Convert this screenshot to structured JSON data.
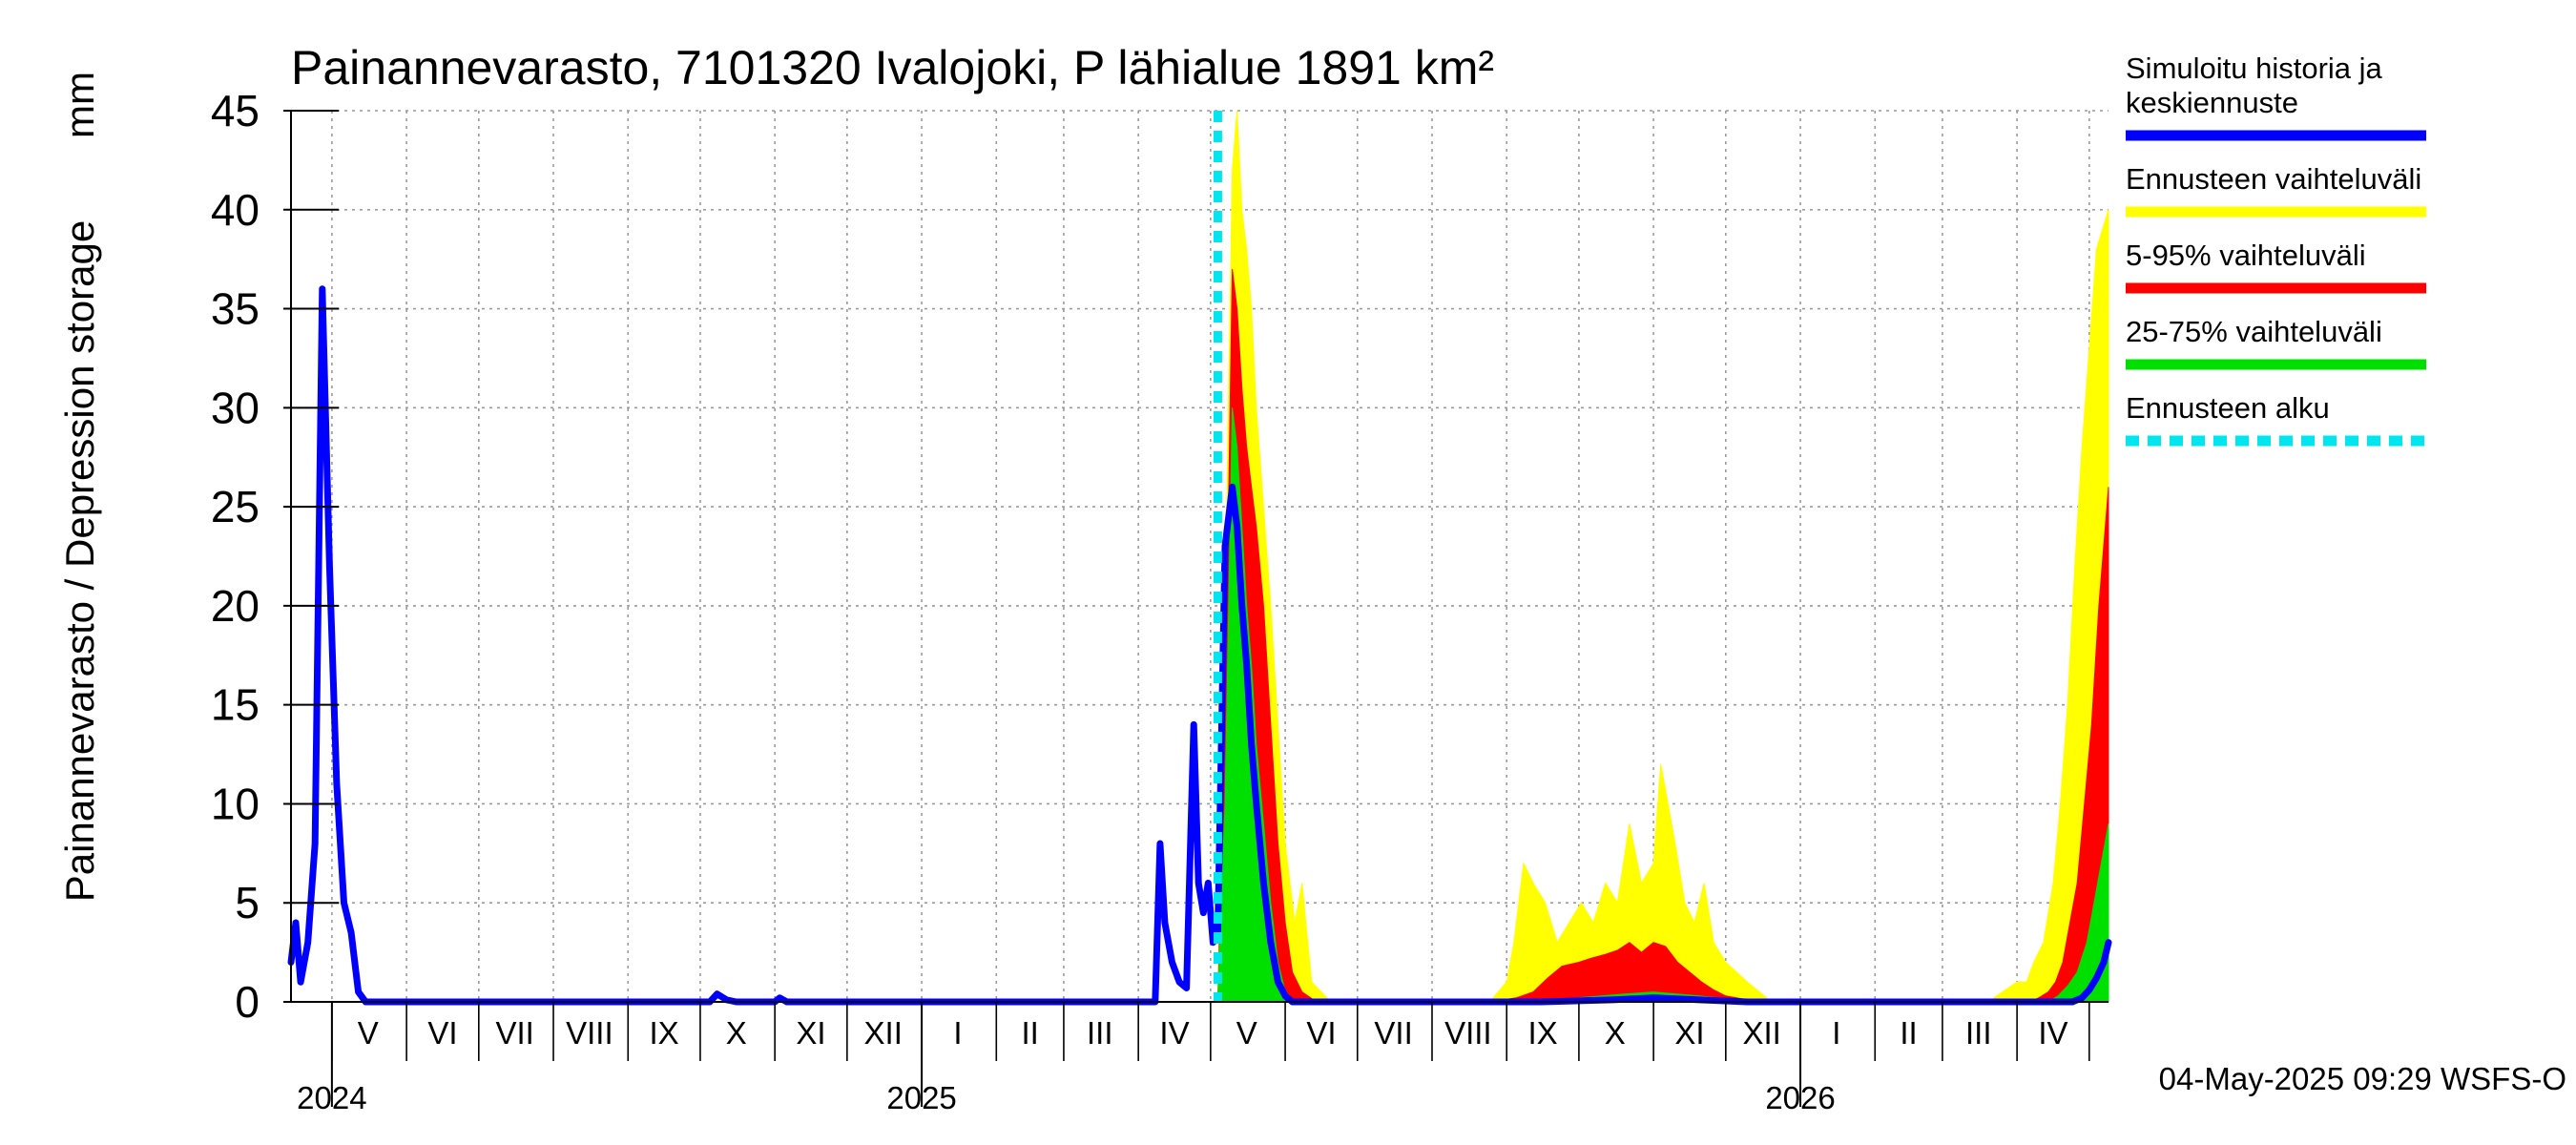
{
  "chart_data": {
    "type": "area",
    "title": "Painannevarasto, 7101320 Ivalojoki, P lähialue 1891 km²",
    "ylabel": "Painannevarasto / Depression storage",
    "yunit": "mm",
    "ylim": [
      0,
      45
    ],
    "yticks": [
      0,
      5,
      10,
      15,
      20,
      25,
      30,
      35,
      40,
      45
    ],
    "xlim": [
      "2024-04-14",
      "2026-05-09"
    ],
    "grid": true,
    "legend_position": "right",
    "month_labels": [
      {
        "label": "V",
        "date": "2024-05-16"
      },
      {
        "label": "VI",
        "date": "2024-06-16"
      },
      {
        "label": "VII",
        "date": "2024-07-16"
      },
      {
        "label": "VIII",
        "date": "2024-08-16"
      },
      {
        "label": "IX",
        "date": "2024-09-16"
      },
      {
        "label": "X",
        "date": "2024-10-16"
      },
      {
        "label": "XI",
        "date": "2024-11-16"
      },
      {
        "label": "XII",
        "date": "2024-12-16"
      },
      {
        "label": "I",
        "date": "2025-01-16"
      },
      {
        "label": "II",
        "date": "2025-02-15"
      },
      {
        "label": "III",
        "date": "2025-03-16"
      },
      {
        "label": "IV",
        "date": "2025-04-16"
      },
      {
        "label": "V",
        "date": "2025-05-16"
      },
      {
        "label": "VI",
        "date": "2025-06-16"
      },
      {
        "label": "VII",
        "date": "2025-07-16"
      },
      {
        "label": "VIII",
        "date": "2025-08-16"
      },
      {
        "label": "IX",
        "date": "2025-09-16"
      },
      {
        "label": "X",
        "date": "2025-10-16"
      },
      {
        "label": "XI",
        "date": "2025-11-16"
      },
      {
        "label": "XII",
        "date": "2025-12-16"
      },
      {
        "label": "I",
        "date": "2026-01-16"
      },
      {
        "label": "II",
        "date": "2026-02-15"
      },
      {
        "label": "III",
        "date": "2026-03-16"
      },
      {
        "label": "IV",
        "date": "2026-04-16"
      }
    ],
    "month_gridlines": [
      "2024-05-01",
      "2024-06-01",
      "2024-07-01",
      "2024-08-01",
      "2024-09-01",
      "2024-10-01",
      "2024-11-01",
      "2024-12-01",
      "2025-01-01",
      "2025-02-01",
      "2025-03-01",
      "2025-04-01",
      "2025-05-01",
      "2025-06-01",
      "2025-07-01",
      "2025-08-01",
      "2025-09-01",
      "2025-10-01",
      "2025-11-01",
      "2025-12-01",
      "2026-01-01",
      "2026-02-01",
      "2026-03-01",
      "2026-04-01",
      "2026-05-01"
    ],
    "year_labels": [
      {
        "label": "2024",
        "date": "2024-05-01"
      },
      {
        "label": "2025",
        "date": "2025-01-01"
      },
      {
        "label": "2026",
        "date": "2026-01-01"
      }
    ],
    "forecast_start": "2025-05-04",
    "series": [
      {
        "name": "Ennusteen vaihteluväli",
        "color": "#ffff00",
        "kind": "band",
        "x": [
          "2025-05-04",
          "2025-05-07",
          "2025-05-10",
          "2025-05-12",
          "2025-05-14",
          "2025-05-16",
          "2025-05-18",
          "2025-05-20",
          "2025-05-23",
          "2025-05-26",
          "2025-05-29",
          "2025-06-01",
          "2025-06-03",
          "2025-06-05",
          "2025-06-08",
          "2025-06-12",
          "2025-06-20",
          "2025-07-01",
          "2025-08-01",
          "2025-08-25",
          "2025-09-01",
          "2025-09-04",
          "2025-09-08",
          "2025-09-12",
          "2025-09-17",
          "2025-09-22",
          "2025-09-27",
          "2025-10-02",
          "2025-10-07",
          "2025-10-12",
          "2025-10-17",
          "2025-10-22",
          "2025-10-27",
          "2025-11-01",
          "2025-11-04",
          "2025-11-07",
          "2025-11-10",
          "2025-11-14",
          "2025-11-18",
          "2025-11-22",
          "2025-11-26",
          "2025-12-01",
          "2025-12-10",
          "2025-12-20",
          "2026-01-01",
          "2026-02-01",
          "2026-03-01",
          "2026-03-20",
          "2026-03-26",
          "2026-04-01",
          "2026-04-05",
          "2026-04-08",
          "2026-04-12",
          "2026-04-16",
          "2026-04-19",
          "2026-04-22",
          "2026-04-25",
          "2026-04-28",
          "2026-05-01",
          "2026-05-04",
          "2026-05-09"
        ],
        "upper": [
          0,
          20,
          42,
          45,
          40,
          38,
          35,
          30,
          25,
          20,
          14,
          8,
          6,
          4,
          6,
          1,
          0,
          0,
          0,
          0,
          1,
          3,
          7,
          6,
          5,
          3,
          4,
          5,
          4,
          6,
          5,
          9,
          6,
          7,
          12,
          10,
          8,
          5,
          4,
          6,
          3,
          2,
          1,
          0,
          0,
          0,
          0,
          0,
          0.5,
          1,
          1,
          2,
          3,
          6,
          10,
          15,
          22,
          28,
          33,
          38,
          40
        ],
        "lower": [
          0,
          0,
          0,
          0,
          0,
          0,
          0,
          0,
          0,
          0,
          0,
          0,
          0,
          0,
          0,
          0,
          0,
          0,
          0,
          0,
          0,
          0,
          0,
          0,
          0,
          0,
          0,
          0,
          0,
          0,
          0,
          0,
          0,
          0,
          0,
          0,
          0,
          0,
          0,
          0,
          0,
          0,
          0,
          0,
          0,
          0,
          0,
          0,
          0,
          0,
          0,
          0,
          0,
          0,
          0,
          0,
          0,
          0,
          0,
          0,
          0
        ]
      },
      {
        "name": "5-95% vaihteluväli",
        "color": "#ff0000",
        "kind": "band",
        "x": [
          "2025-05-04",
          "2025-05-07",
          "2025-05-10",
          "2025-05-12",
          "2025-05-14",
          "2025-05-16",
          "2025-05-18",
          "2025-05-20",
          "2025-05-23",
          "2025-05-26",
          "2025-05-29",
          "2025-06-01",
          "2025-06-04",
          "2025-06-08",
          "2025-06-14",
          "2025-07-01",
          "2025-08-25",
          "2025-09-05",
          "2025-09-12",
          "2025-09-18",
          "2025-09-24",
          "2025-10-01",
          "2025-10-06",
          "2025-10-12",
          "2025-10-17",
          "2025-10-22",
          "2025-10-27",
          "2025-11-01",
          "2025-11-06",
          "2025-11-11",
          "2025-11-16",
          "2025-11-21",
          "2025-11-26",
          "2025-12-01",
          "2025-12-10",
          "2026-01-01",
          "2026-03-01",
          "2026-04-01",
          "2026-04-06",
          "2026-04-10",
          "2026-04-14",
          "2026-04-17",
          "2026-04-20",
          "2026-04-23",
          "2026-04-26",
          "2026-04-29",
          "2026-05-02",
          "2026-05-05",
          "2026-05-09"
        ],
        "upper": [
          0,
          14,
          37,
          35,
          31,
          28,
          26,
          24,
          20,
          14,
          8,
          4,
          1.5,
          0.5,
          0,
          0,
          0,
          0.2,
          0.5,
          1.2,
          1.8,
          2,
          2.2,
          2.4,
          2.6,
          3,
          2.5,
          3,
          2.8,
          2,
          1.5,
          1,
          0.6,
          0.3,
          0.1,
          0,
          0,
          0,
          0,
          0.2,
          0.5,
          1,
          2,
          4,
          6,
          10,
          14,
          20,
          26
        ],
        "lower": [
          0,
          0,
          0,
          0,
          0,
          0,
          0,
          0,
          0,
          0,
          0,
          0,
          0,
          0,
          0,
          0,
          0,
          0,
          0,
          0,
          0,
          0,
          0,
          0,
          0,
          0,
          0,
          0,
          0,
          0,
          0,
          0,
          0,
          0,
          0,
          0,
          0,
          0,
          0,
          0,
          0,
          0,
          0,
          0,
          0,
          0,
          0,
          0,
          0
        ]
      },
      {
        "name": "25-75% vaihteluväli",
        "color": "#00e000",
        "kind": "band",
        "x": [
          "2025-05-04",
          "2025-05-07",
          "2025-05-10",
          "2025-05-12",
          "2025-05-14",
          "2025-05-16",
          "2025-05-18",
          "2025-05-20",
          "2025-05-23",
          "2025-05-26",
          "2025-05-29",
          "2025-06-01",
          "2025-06-04",
          "2025-06-10",
          "2025-07-01",
          "2025-09-15",
          "2025-10-01",
          "2025-10-20",
          "2025-11-01",
          "2025-11-20",
          "2025-12-05",
          "2026-01-01",
          "2026-04-01",
          "2026-04-14",
          "2026-04-18",
          "2026-04-22",
          "2026-04-26",
          "2026-04-30",
          "2026-05-03",
          "2026-05-06",
          "2026-05-09"
        ],
        "upper": [
          0,
          10,
          30,
          28,
          24,
          20,
          17,
          13,
          9,
          5,
          2,
          0.5,
          0.1,
          0,
          0,
          0,
          0.2,
          0.4,
          0.5,
          0.3,
          0.1,
          0,
          0,
          0,
          0.3,
          0.8,
          1.5,
          3,
          5,
          7,
          9
        ],
        "lower": [
          0,
          0,
          0,
          0,
          0,
          0,
          0,
          0,
          0,
          0,
          0,
          0,
          0,
          0,
          0,
          0,
          0,
          0,
          0,
          0,
          0,
          0,
          0,
          0,
          0,
          0,
          0,
          0,
          0,
          0,
          0
        ]
      },
      {
        "name": "Simuloitu historia ja keskiennuste",
        "color": "#0000ff",
        "kind": "line",
        "x": [
          "2024-04-14",
          "2024-04-16",
          "2024-04-18",
          "2024-04-21",
          "2024-04-24",
          "2024-04-27",
          "2024-04-30",
          "2024-05-03",
          "2024-05-06",
          "2024-05-09",
          "2024-05-12",
          "2024-05-15",
          "2024-05-18",
          "2024-05-21",
          "2024-05-24",
          "2024-05-28",
          "2024-06-01",
          "2024-10-05",
          "2024-10-08",
          "2024-10-12",
          "2024-10-16",
          "2024-11-01",
          "2024-11-03",
          "2024-11-06",
          "2025-04-08",
          "2025-04-10",
          "2025-04-12",
          "2025-04-15",
          "2025-04-18",
          "2025-04-21",
          "2025-04-24",
          "2025-04-26",
          "2025-04-28",
          "2025-04-30",
          "2025-05-02",
          "2025-05-04",
          "2025-05-07",
          "2025-05-10",
          "2025-05-12",
          "2025-05-14",
          "2025-05-16",
          "2025-05-18",
          "2025-05-20",
          "2025-05-23",
          "2025-05-26",
          "2025-05-29",
          "2025-06-01",
          "2025-06-04",
          "2025-09-15",
          "2025-10-15",
          "2025-11-01",
          "2025-11-20",
          "2025-12-10",
          "2026-04-24",
          "2026-04-28",
          "2026-05-01",
          "2026-05-04",
          "2026-05-07",
          "2026-05-09"
        ],
        "y": [
          2,
          4,
          1,
          3,
          8,
          36,
          22,
          11,
          5,
          3.5,
          0.5,
          0,
          0,
          0,
          0,
          0,
          0,
          0,
          0.4,
          0.1,
          0,
          0,
          0.2,
          0,
          0,
          8,
          4,
          2,
          1,
          0.7,
          14,
          6,
          4.5,
          6,
          3,
          3.5,
          23,
          26,
          24,
          20,
          17,
          13,
          10,
          6,
          3,
          1,
          0.3,
          0,
          0,
          0.1,
          0.2,
          0.1,
          0,
          0,
          0.2,
          0.6,
          1.2,
          2,
          3
        ]
      },
      {
        "name": "Ennusteen alku",
        "color": "#00e5ee",
        "kind": "vline",
        "x": "2025-05-04"
      }
    ],
    "legend": [
      {
        "label": "Simuloitu historia ja\nkeskiennuste",
        "color": "#0000ff",
        "style": "solid"
      },
      {
        "label": "Ennusteen vaihteluväli",
        "color": "#ffff00",
        "style": "solid"
      },
      {
        "label": "5-95% vaihteluväli",
        "color": "#ff0000",
        "style": "solid"
      },
      {
        "label": "25-75% vaihteluväli",
        "color": "#00e000",
        "style": "solid"
      },
      {
        "label": "Ennusteen alku",
        "color": "#00e5ee",
        "style": "dashed"
      }
    ],
    "footer": "04-May-2025 09:29 WSFS-O"
  }
}
